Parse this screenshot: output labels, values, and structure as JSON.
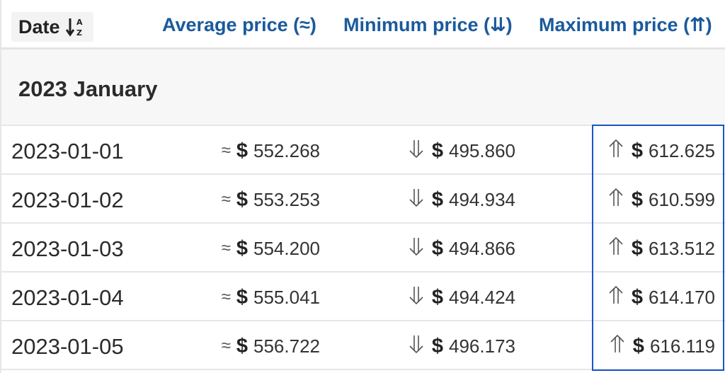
{
  "header": {
    "date_label": "Date",
    "avg_label": "Average price (≈)",
    "min_label": "Minimum price (⇊)",
    "max_label": "Maximum price (⇈)",
    "sort_icon": "sort-az-icon"
  },
  "group": {
    "title": "2023 January"
  },
  "currency": "$",
  "symbols": {
    "avg": "≈",
    "min_icon": "double-down-arrow-icon",
    "max_icon": "double-up-arrow-icon"
  },
  "rows": [
    {
      "date": "2023-01-01",
      "avg": "552.268",
      "min": "495.860",
      "max": "612.625"
    },
    {
      "date": "2023-01-02",
      "avg": "553.253",
      "min": "494.934",
      "max": "610.599"
    },
    {
      "date": "2023-01-03",
      "avg": "554.200",
      "min": "494.866",
      "max": "613.512"
    },
    {
      "date": "2023-01-04",
      "avg": "555.041",
      "min": "494.424",
      "max": "614.170"
    },
    {
      "date": "2023-01-05",
      "avg": "556.722",
      "min": "496.173",
      "max": "616.119"
    }
  ],
  "colors": {
    "header_link": "#1a5a9c",
    "highlight_border": "#1a55c8"
  }
}
